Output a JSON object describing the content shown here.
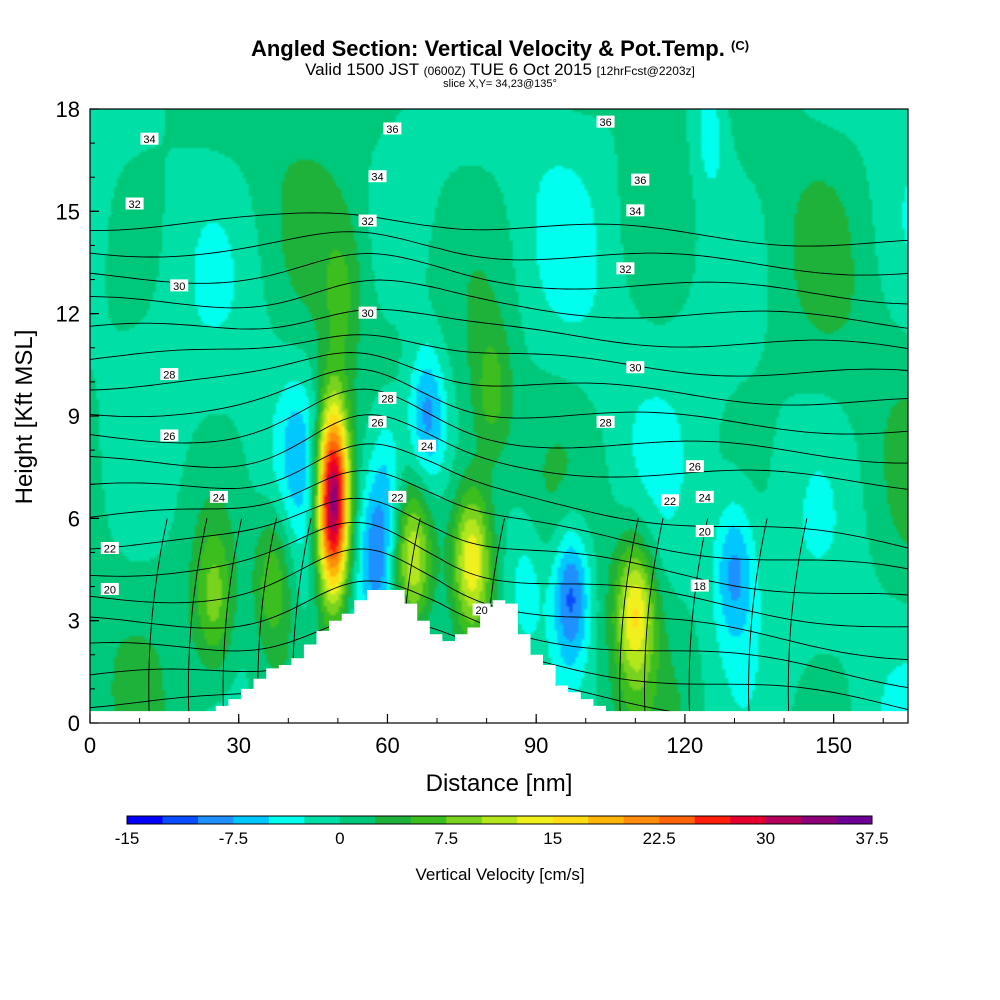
{
  "titles": {
    "main": "Angled Section: Vertical Velocity & Pot.Temp.",
    "main_note": "(C)",
    "valid_a": "Valid 1500 JST",
    "valid_b": "(0600Z)",
    "valid_c": "TUE 6 Oct 2015",
    "valid_d": "[12hrFcst@2203z]",
    "slice": "slice X,Y= 34,23@135°"
  },
  "chart_data": {
    "type": "heatmap",
    "xlabel": "Distance [nm]",
    "ylabel": "Height [Kft MSL]",
    "xlim": [
      0,
      165
    ],
    "ylim": [
      0,
      18
    ],
    "xticks": [
      "0",
      "30",
      "60",
      "90",
      "120",
      "150"
    ],
    "yticks": [
      "0",
      "3",
      "6",
      "9",
      "12",
      "15",
      "18"
    ],
    "colorbar": {
      "label": "Vertical Velocity [cm/s]",
      "tick_labels": [
        "-15",
        "-7.5",
        "0",
        "7.5",
        "15",
        "22.5",
        "30",
        "37.5"
      ],
      "colors": [
        "#0000ff",
        "#0a4cff",
        "#1e90ff",
        "#00c8ff",
        "#00ffee",
        "#00e0a6",
        "#00c87a",
        "#1fb23a",
        "#3cbe1e",
        "#78d21e",
        "#b4e61e",
        "#f0f01e",
        "#ffdc14",
        "#ffb40a",
        "#ff8c0a",
        "#ff640a",
        "#ff1e0a",
        "#e6002d",
        "#b4005a",
        "#8c0078",
        "#6e0096"
      ]
    },
    "terrain_heights_kft": [
      0,
      0,
      0,
      0,
      0,
      0,
      0,
      0,
      0,
      0.3,
      0.5,
      0.7,
      1.0,
      1.3,
      1.6,
      1.7,
      1.9,
      2.3,
      2.7,
      3.0,
      3.2,
      3.6,
      3.9,
      3.9,
      3.9,
      3.5,
      3.0,
      2.6,
      2.4,
      2.6,
      2.8,
      3.4,
      3.6,
      3.5,
      2.6,
      2.0,
      1.7,
      1.1,
      0.9,
      0.7,
      0.5,
      0.3,
      0,
      0,
      0,
      0,
      0,
      0,
      0,
      0,
      0,
      0,
      0,
      0,
      0,
      0,
      0,
      0,
      0,
      0,
      0,
      0,
      0,
      0,
      0,
      0
    ],
    "updraft_cores": [
      {
        "x": 49,
        "y": 6.5,
        "w": 36
      },
      {
        "x": 77,
        "y": 4.8,
        "w": 15
      },
      {
        "x": 65,
        "y": 4.7,
        "w": 12
      },
      {
        "x": 110,
        "y": 3.3,
        "w": 14
      },
      {
        "x": 25,
        "y": 3.6,
        "w": 8
      },
      {
        "x": 37,
        "y": 4.2,
        "w": 8
      },
      {
        "x": 81,
        "y": 9.6,
        "w": 6
      },
      {
        "x": 51,
        "y": 12.5,
        "w": 4
      }
    ],
    "downdraft_cores": [
      {
        "x": 97,
        "y": 3.8,
        "w": -12
      },
      {
        "x": 68,
        "y": 9.0,
        "w": -10
      },
      {
        "x": 58,
        "y": 5.0,
        "w": -9
      },
      {
        "x": 130,
        "y": 4.5,
        "w": -8
      },
      {
        "x": 88,
        "y": 4.0,
        "w": -5
      },
      {
        "x": 60,
        "y": 7.5,
        "w": -6
      },
      {
        "x": 125,
        "y": 17.5,
        "w": -5
      },
      {
        "x": 42,
        "y": 8.0,
        "w": -4
      }
    ],
    "isentrope_labels": [
      {
        "text": "34",
        "x": 12,
        "y": 17.1
      },
      {
        "text": "36",
        "x": 61,
        "y": 17.4
      },
      {
        "text": "36",
        "x": 104,
        "y": 17.6
      },
      {
        "text": "34",
        "x": 58,
        "y": 16.0
      },
      {
        "text": "36",
        "x": 111,
        "y": 15.9
      },
      {
        "text": "32",
        "x": 9,
        "y": 15.2
      },
      {
        "text": "32",
        "x": 56,
        "y": 14.7
      },
      {
        "text": "34",
        "x": 110,
        "y": 15.0
      },
      {
        "text": "32",
        "x": 108,
        "y": 13.3
      },
      {
        "text": "30",
        "x": 18,
        "y": 12.8
      },
      {
        "text": "30",
        "x": 56,
        "y": 12.0
      },
      {
        "text": "30",
        "x": 110,
        "y": 10.4
      },
      {
        "text": "28",
        "x": 16,
        "y": 10.2
      },
      {
        "text": "28",
        "x": 60,
        "y": 9.5
      },
      {
        "text": "28",
        "x": 104,
        "y": 8.8
      },
      {
        "text": "26",
        "x": 16,
        "y": 8.4
      },
      {
        "text": "26",
        "x": 58,
        "y": 8.8
      },
      {
        "text": "26",
        "x": 122,
        "y": 7.5
      },
      {
        "text": "24",
        "x": 26,
        "y": 6.6
      },
      {
        "text": "24",
        "x": 68,
        "y": 8.1
      },
      {
        "text": "24",
        "x": 124,
        "y": 6.6
      },
      {
        "text": "22",
        "x": 4,
        "y": 5.1
      },
      {
        "text": "22",
        "x": 62,
        "y": 6.6
      },
      {
        "text": "22",
        "x": 117,
        "y": 6.5
      },
      {
        "text": "20",
        "x": 4,
        "y": 3.9
      },
      {
        "text": "20",
        "x": 79,
        "y": 3.3
      },
      {
        "text": "20",
        "x": 124,
        "y": 5.6
      },
      {
        "text": "18",
        "x": 123,
        "y": 4.0
      }
    ]
  }
}
